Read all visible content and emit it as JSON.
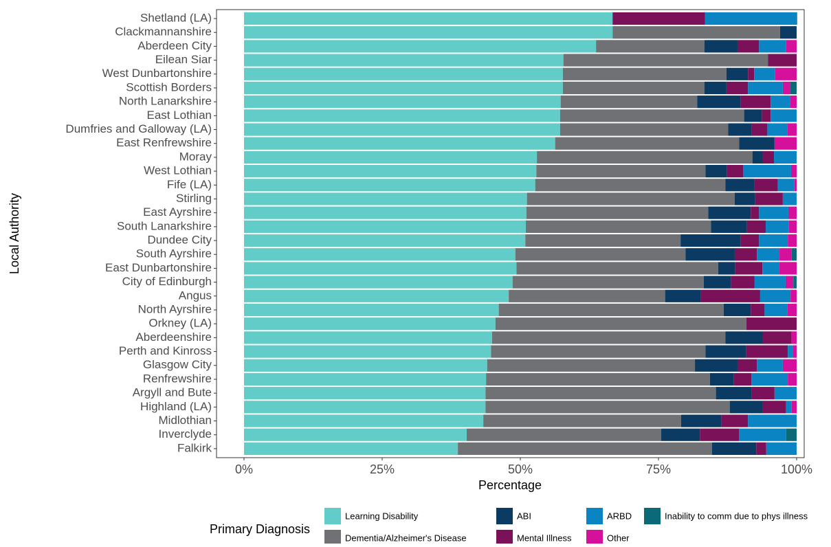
{
  "chart_data": {
    "type": "stacked-barh",
    "x_label": "Percentage",
    "y_label": "Local Authority",
    "legend_title": "Primary Diagnosis",
    "xlim": [
      0,
      100
    ],
    "xticks": [
      {
        "value": 0,
        "label": "0%"
      },
      {
        "value": 25,
        "label": "25%"
      },
      {
        "value": 50,
        "label": "50%"
      },
      {
        "value": 75,
        "label": "75%"
      },
      {
        "value": 100,
        "label": "100%"
      }
    ],
    "categories": [
      "Shetland (LA)",
      "Clackmannanshire",
      "Aberdeen City",
      "Eilean Siar",
      "West Dunbartonshire",
      "Scottish Borders",
      "North Lanarkshire",
      "East Lothian",
      "Dumfries and Galloway (LA)",
      "East Renfrewshire",
      "Moray",
      "West Lothian",
      "Fife (LA)",
      "Stirling",
      "East Ayrshire",
      "South Lanarkshire",
      "Dundee City",
      "South Ayrshire",
      "East Dunbartonshire",
      "City of Edinburgh",
      "Angus",
      "North Ayrshire",
      "Orkney (LA)",
      "Aberdeenshire",
      "Perth and Kinross",
      "Glasgow City",
      "Renfrewshire",
      "Argyll and Bute",
      "Highland (LA)",
      "Midlothian",
      "Inverclyde",
      "Falkirk"
    ],
    "series": [
      {
        "name": "Learning Disability",
        "color": "#62ccc8",
        "values": [
          66.7,
          66.7,
          63.7,
          57.8,
          57.7,
          57.7,
          57.3,
          57.2,
          57.2,
          56.3,
          53.0,
          52.9,
          52.7,
          51.2,
          51.1,
          51.0,
          50.9,
          49.1,
          49.3,
          48.6,
          47.9,
          46.1,
          45.5,
          44.9,
          44.7,
          44.0,
          43.8,
          43.7,
          43.7,
          43.3,
          40.3,
          38.7
        ]
      },
      {
        "name": "Dementia/Alzheimer's Disease",
        "color": "#707175",
        "values": [
          0,
          30.3,
          19.6,
          37.0,
          29.6,
          25.6,
          24.7,
          33.3,
          30.4,
          33.3,
          39.0,
          30.6,
          34.4,
          37.6,
          32.9,
          33.5,
          28.1,
          30.8,
          36.5,
          34.6,
          28.3,
          40.7,
          45.4,
          42.2,
          38.8,
          37.6,
          40.5,
          41.7,
          44.2,
          35.8,
          35.2,
          46.0
        ]
      },
      {
        "name": "ABI",
        "color": "#0b3a63",
        "values": [
          0,
          3.0,
          6.0,
          0,
          3.9,
          4.0,
          7.9,
          3.2,
          4.2,
          6.4,
          1.9,
          3.9,
          5.3,
          3.7,
          7.7,
          6.5,
          10.9,
          8.9,
          3.1,
          4.9,
          6.5,
          4.9,
          0,
          6.8,
          7.4,
          7.7,
          4.3,
          6.4,
          6.0,
          7.3,
          7.0,
          8.0
        ]
      },
      {
        "name": "Mental Illness",
        "color": "#7b1158",
        "values": [
          16.7,
          0,
          3.9,
          5.2,
          1.1,
          3.9,
          5.4,
          1.6,
          2.9,
          0,
          2.0,
          2.9,
          4.2,
          5.0,
          1.5,
          3.4,
          3.3,
          4.0,
          4.9,
          4.3,
          10.7,
          2.5,
          9.1,
          5.2,
          7.5,
          3.5,
          3.2,
          4.2,
          4.2,
          4.8,
          7.1,
          1.8
        ]
      },
      {
        "name": "ARBD",
        "color": "#0a84c2",
        "values": [
          16.7,
          0,
          4.9,
          0,
          3.8,
          6.3,
          3.5,
          4.7,
          3.6,
          0,
          4.1,
          8.7,
          3.0,
          2.5,
          5.3,
          4.2,
          5.2,
          4.1,
          3.0,
          5.6,
          5.5,
          4.1,
          0,
          0,
          0.9,
          4.7,
          6.6,
          4.0,
          1.0,
          8.8,
          8.5,
          5.5
        ]
      },
      {
        "name": "Other",
        "color": "#d5109a",
        "values": [
          0,
          0,
          1.9,
          0,
          3.9,
          1.3,
          1.2,
          0,
          1.7,
          4.0,
          0,
          1.0,
          0.4,
          0,
          1.5,
          1.4,
          1.6,
          2.2,
          3.2,
          1.4,
          1.1,
          1.7,
          0,
          0.9,
          0.7,
          2.5,
          1.6,
          0,
          0.9,
          0,
          0,
          0
        ]
      },
      {
        "name": "Inability to comm due to phys illness",
        "color": "#0c6a78",
        "values": [
          0,
          0,
          0,
          0,
          0,
          1.2,
          0,
          0,
          0,
          0,
          0,
          0,
          0,
          0,
          0,
          0,
          0,
          0.9,
          0,
          0.6,
          0,
          0,
          0,
          0,
          0,
          0,
          0,
          0,
          0,
          0,
          1.9,
          0
        ]
      }
    ]
  }
}
